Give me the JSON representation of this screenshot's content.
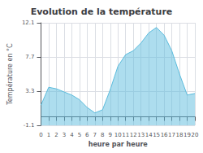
{
  "chart_data": {
    "type": "area",
    "title": "Evolution de la température",
    "xlabel": "heure par heure",
    "ylabel": "Température en °C",
    "x": [
      0,
      1,
      2,
      3,
      4,
      5,
      6,
      7,
      8,
      9,
      10,
      11,
      12,
      13,
      14,
      15,
      16,
      17,
      18,
      19,
      20
    ],
    "values": [
      1.5,
      3.8,
      3.6,
      3.2,
      2.8,
      2.2,
      1.2,
      0.5,
      0.9,
      3.5,
      6.5,
      8.0,
      8.5,
      9.5,
      10.8,
      11.5,
      10.5,
      8.5,
      5.5,
      2.8,
      3.0
    ],
    "color": "#5bbcdd",
    "xlim": [
      0,
      20
    ],
    "xticks": [
      0,
      1,
      2,
      3,
      4,
      5,
      6,
      7,
      8,
      9,
      10,
      11,
      12,
      13,
      14,
      15,
      16,
      17,
      18,
      19,
      20
    ],
    "ylim": [
      -1.1,
      12.1
    ],
    "yticks": [
      -1.1,
      3.3,
      7.7,
      12.1
    ],
    "grid": true
  }
}
